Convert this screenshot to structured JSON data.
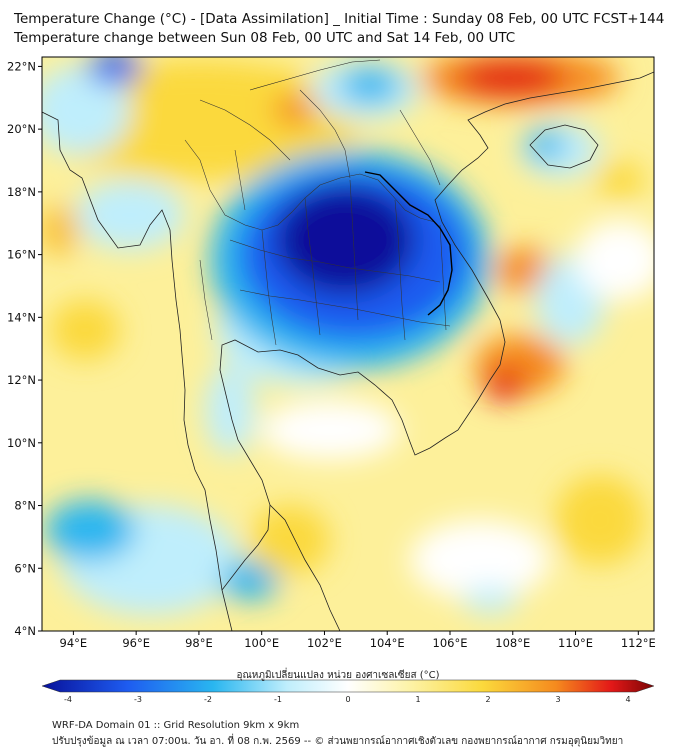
{
  "header": {
    "title_line1": "Temperature Change (°C) - [Data Assimilation] _ Initial Time : Sunday 08 Feb, 00 UTC FCST+144",
    "title_line2": "Temperature change between Sun 08 Feb, 00 UTC and Sat 14 Feb, 00 UTC"
  },
  "map": {
    "lat_labels": [
      "22°N",
      "20°N",
      "18°N",
      "16°N",
      "14°N",
      "12°N",
      "10°N",
      "8°N",
      "6°N",
      "4°N"
    ],
    "lon_labels": [
      "94°E",
      "96°E",
      "98°E",
      "100°E",
      "102°E",
      "104°E",
      "106°E",
      "108°E",
      "110°E",
      "112°E"
    ],
    "lat_range": [
      4,
      22.3
    ],
    "lon_range": [
      93,
      112.5
    ]
  },
  "colorbar": {
    "label": "อุณหภูมิเปลี่ยนแปลง หน่วย องศาเซลเซียส (°C)",
    "ticks": [
      "-4",
      "-3",
      "-2",
      "-1",
      "0",
      "1",
      "2",
      "3",
      "4"
    ],
    "colors": {
      "deep_blue": "#08119a",
      "blue": "#1e5cf0",
      "cyan": "#29b6f0",
      "light_cyan": "#bfeefc",
      "white": "#ffffff",
      "light_yellow": "#fdf3a8",
      "yellow": "#fbd93c",
      "orange": "#f58a1e",
      "red": "#e31818",
      "dark_red": "#7a0505"
    }
  },
  "footer": {
    "line1": "WRF-DA Domain 01 :: Grid Resolution 9km x 9km",
    "line2": "ปรับปรุงข้อมูล ณ เวลา 07:00น. วัน อา. ที่ 08 ก.พ. 2569 -- © ส่วนพยากรณ์อากาศเชิงตัวเลข กองพยากรณ์อากาศ กรมอุตุนิยมวิทยา"
  }
}
